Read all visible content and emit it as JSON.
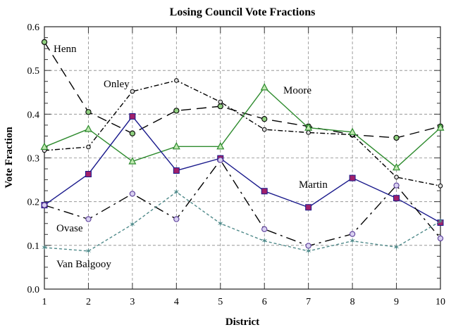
{
  "chart_data": {
    "type": "line",
    "title": "Losing Council Vote Fractions",
    "xlabel": "District",
    "ylabel": "Vote Fraction",
    "xlim": [
      1,
      10
    ],
    "ylim": [
      0,
      0.6
    ],
    "x": [
      1,
      2,
      3,
      4,
      5,
      6,
      7,
      8,
      9,
      10
    ],
    "xticks": [
      "1",
      "2",
      "3",
      "4",
      "5",
      "6",
      "7",
      "8",
      "9",
      "10"
    ],
    "yticks": [
      "0.0",
      "0.1",
      "0.2",
      "0.3",
      "0.4",
      "0.5",
      "0.6"
    ],
    "grid": true,
    "legend": "inline labels",
    "series": [
      {
        "name": "Henn",
        "color": "#000000",
        "marker_color": "#2e8b2e",
        "marker": "circle",
        "dash": "long-dash",
        "values": [
          0.565,
          0.405,
          0.356,
          0.408,
          0.418,
          0.389,
          0.372,
          0.353,
          0.346,
          0.372
        ]
      },
      {
        "name": "Onley",
        "color": "#000000",
        "marker_color": "#000000",
        "marker": "small-circle",
        "dash": "dash-dot",
        "values": [
          0.317,
          0.325,
          0.452,
          0.477,
          0.428,
          0.365,
          0.358,
          0.353,
          0.256,
          0.236
        ]
      },
      {
        "name": "Moore",
        "color": "#2e8b2e",
        "marker_color": "#2e8b2e",
        "marker": "triangle",
        "dash": "solid",
        "values": [
          0.325,
          0.366,
          0.292,
          0.326,
          0.326,
          0.461,
          0.369,
          0.359,
          0.278,
          0.369
        ]
      },
      {
        "name": "Martin",
        "color": "#1a1a8c",
        "marker_color": "#a0206a",
        "marker": "square",
        "dash": "solid",
        "values": [
          0.192,
          0.263,
          0.395,
          0.271,
          0.299,
          0.224,
          0.187,
          0.254,
          0.208,
          0.152
        ]
      },
      {
        "name": "Ovase",
        "color": "#000000",
        "marker_color": "#5a3c9a",
        "marker": "circle",
        "dash": "dash-dot-long",
        "values": [
          0.192,
          0.16,
          0.218,
          0.16,
          0.295,
          0.137,
          0.099,
          0.126,
          0.237,
          0.116
        ]
      },
      {
        "name": "Van Balgooy",
        "color": "#4f8a8a",
        "marker_color": "#4f8a8a",
        "marker": "star",
        "dash": "dotted",
        "values": [
          0.095,
          0.087,
          0.148,
          0.222,
          0.15,
          0.11,
          0.087,
          0.11,
          0.096,
          0.155
        ]
      }
    ]
  }
}
